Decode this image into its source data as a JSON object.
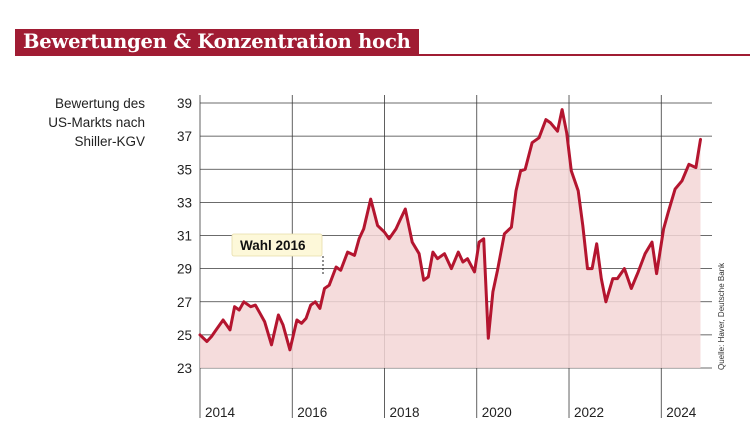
{
  "title": "Bewertungen & Konzentration hoch",
  "ylabel_lines": [
    "Bewertung des",
    "US-Markts nach",
    "Shiller-KGV"
  ],
  "source": "Quelle: Haver, Deutsche Bank",
  "colors": {
    "brand": "#a01c33",
    "line": "#b4152f",
    "fill": "#f3d6d6",
    "annotation_bg": "#fdf8d9"
  },
  "chart_data": {
    "type": "area",
    "title": "Bewertungen & Konzentration hoch",
    "ylabel": "Bewertung des US-Markts nach Shiller-KGV",
    "xlabel": "",
    "ylim": [
      23,
      39
    ],
    "xlim": [
      2014,
      2025.1
    ],
    "yticks": [
      23,
      25,
      27,
      29,
      31,
      33,
      35,
      37,
      39
    ],
    "xticks": [
      2014,
      2016,
      2018,
      2020,
      2022,
      2024
    ],
    "grid": true,
    "annotations": [
      {
        "text": "Wahl 2016",
        "x": 2016.8,
        "y": 29.5
      }
    ],
    "series": [
      {
        "x": [
          2014.0,
          2014.15,
          2014.25,
          2014.35,
          2014.5,
          2014.65,
          2014.75,
          2014.85,
          2014.95,
          2015.1,
          2015.2,
          2015.3,
          2015.4,
          2015.55,
          2015.7,
          2015.8,
          2015.95,
          2016.1,
          2016.2,
          2016.3,
          2016.4,
          2016.5,
          2016.6,
          2016.7,
          2016.8,
          2016.95,
          2017.05,
          2017.2,
          2017.35,
          2017.45,
          2017.55,
          2017.7,
          2017.85,
          2018.0,
          2018.1,
          2018.25,
          2018.35,
          2018.45,
          2018.6,
          2018.75,
          2018.85,
          2018.95,
          2019.05,
          2019.15,
          2019.3,
          2019.45,
          2019.6,
          2019.7,
          2019.8,
          2019.95,
          2020.05,
          2020.15,
          2020.25,
          2020.35,
          2020.45,
          2020.6,
          2020.75,
          2020.85,
          2020.95,
          2021.05,
          2021.2,
          2021.35,
          2021.5,
          2021.6,
          2021.75,
          2021.85,
          2021.95,
          2022.05,
          2022.2,
          2022.3,
          2022.4,
          2022.5,
          2022.6,
          2022.7,
          2022.8,
          2022.95,
          2023.05,
          2023.2,
          2023.35,
          2023.5,
          2023.65,
          2023.8,
          2023.9,
          2024.05,
          2024.15,
          2024.3,
          2024.45,
          2024.6,
          2024.75,
          2024.85
        ],
        "values": [
          25.0,
          24.6,
          24.9,
          25.3,
          25.9,
          25.3,
          26.7,
          26.5,
          27.0,
          26.7,
          26.8,
          26.3,
          25.8,
          24.4,
          26.2,
          25.6,
          24.1,
          25.9,
          25.7,
          26.0,
          26.8,
          27.0,
          26.6,
          27.8,
          28.0,
          29.1,
          28.9,
          30.0,
          29.8,
          30.8,
          31.4,
          33.2,
          31.6,
          31.2,
          30.8,
          31.4,
          32.0,
          32.6,
          30.6,
          29.9,
          28.3,
          28.5,
          30.0,
          29.6,
          29.9,
          29.0,
          30.0,
          29.4,
          29.6,
          28.8,
          30.6,
          30.8,
          24.8,
          27.6,
          28.9,
          31.1,
          31.5,
          33.7,
          34.9,
          35.0,
          36.6,
          36.9,
          38.0,
          37.8,
          37.3,
          38.6,
          37.2,
          34.9,
          33.7,
          31.6,
          29.0,
          29.0,
          30.5,
          28.4,
          27.0,
          28.4,
          28.4,
          29.0,
          27.8,
          28.8,
          29.9,
          30.6,
          28.7,
          31.4,
          32.4,
          33.8,
          34.3,
          35.3,
          35.1,
          36.8
        ]
      }
    ]
  }
}
